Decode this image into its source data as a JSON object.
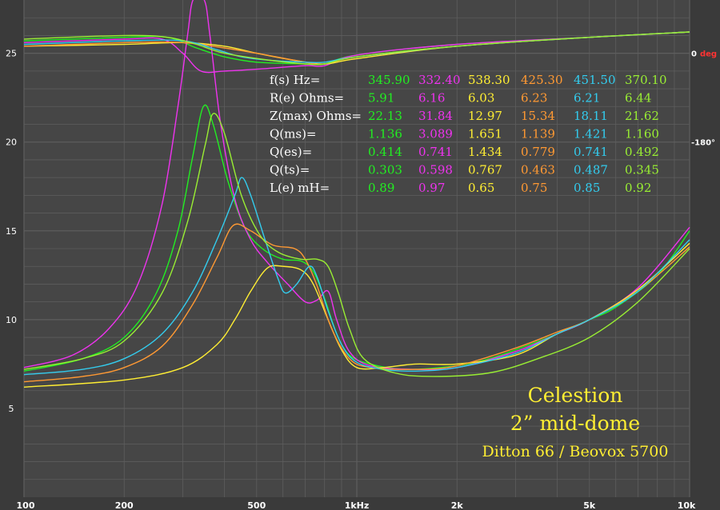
{
  "chart_data": {
    "type": "line",
    "x_scale": "log",
    "xlim": [
      100,
      10000
    ],
    "ylim": [
      0,
      28
    ],
    "grid": true,
    "x_ticks": [
      {
        "value": 100,
        "label": "100"
      },
      {
        "value": 200,
        "label": "200"
      },
      {
        "value": 500,
        "label": "500"
      },
      {
        "value": 1000,
        "label": "1kHz"
      },
      {
        "value": 2000,
        "label": "2k"
      },
      {
        "value": 5000,
        "label": "5k"
      },
      {
        "value": 10000,
        "label": "10k"
      }
    ],
    "y_ticks": [
      {
        "value": 5,
        "label": "5"
      },
      {
        "value": 10,
        "label": "10"
      },
      {
        "value": 15,
        "label": "15"
      },
      {
        "value": 20,
        "label": "20"
      },
      {
        "value": 25,
        "label": "25"
      }
    ],
    "phase_ticks": [
      {
        "value": 25,
        "num": "0",
        "unit": "deg"
      },
      {
        "value": 20,
        "num": "-180°",
        "unit": ""
      }
    ],
    "param_table": {
      "rows": [
        {
          "label": "f(s) Hz=",
          "values": [
            "345.90",
            "332.40",
            "538.30",
            "425.30",
            "451.50",
            "370.10"
          ]
        },
        {
          "label": "R(e) Ohms=",
          "values": [
            "5.91",
            "6.16",
            "6.03",
            "6.23",
            "6.21",
            "6.44"
          ]
        },
        {
          "label": "Z(max) Ohms=",
          "values": [
            "22.13",
            "31.84",
            "12.97",
            "15.34",
            "18.11",
            "21.62"
          ]
        },
        {
          "label": "Q(ms)=",
          "values": [
            "1.136",
            "3.089",
            "1.651",
            "1.139",
            "1.421",
            "1.160"
          ]
        },
        {
          "label": "Q(es)=",
          "values": [
            "0.414",
            "0.741",
            "1.434",
            "0.779",
            "0.741",
            "0.492"
          ]
        },
        {
          "label": "Q(ts)=",
          "values": [
            "0.303",
            "0.598",
            "0.767",
            "0.463",
            "0.487",
            "0.345"
          ]
        },
        {
          "label": "L(e) mH=",
          "values": [
            "0.89",
            "0.97",
            "0.65",
            "0.75",
            "0.85",
            "0.92"
          ]
        }
      ]
    },
    "series": [
      {
        "color": "#22ee22",
        "impedance": [
          [
            100,
            7.1
          ],
          [
            150,
            7.8
          ],
          [
            200,
            9.0
          ],
          [
            250,
            11.5
          ],
          [
            290,
            15.0
          ],
          [
            320,
            19.0
          ],
          [
            345.9,
            22.0
          ],
          [
            370,
            21.0
          ],
          [
            410,
            17.8
          ],
          [
            460,
            15.2
          ],
          [
            520,
            14.0
          ],
          [
            600,
            13.4
          ],
          [
            680,
            13.3
          ],
          [
            740,
            12.7
          ],
          [
            800,
            11.2
          ],
          [
            870,
            9.2
          ],
          [
            950,
            8.0
          ],
          [
            1100,
            7.5
          ],
          [
            1400,
            7.2
          ],
          [
            2000,
            7.4
          ],
          [
            2500,
            7.8
          ],
          [
            3000,
            8.3
          ],
          [
            4000,
            9.2
          ],
          [
            5000,
            10.0
          ],
          [
            6000,
            10.7
          ],
          [
            8000,
            12.5
          ],
          [
            10000,
            15.0
          ]
        ],
        "phase": [
          [
            100,
            25.7
          ],
          [
            200,
            25.9
          ],
          [
            270,
            25.9
          ],
          [
            330,
            25.3
          ],
          [
            400,
            24.8
          ],
          [
            500,
            24.5
          ],
          [
            700,
            24.4
          ],
          [
            800,
            24.4
          ],
          [
            1000,
            24.9
          ],
          [
            2000,
            25.5
          ],
          [
            5000,
            25.9
          ],
          [
            10000,
            26.2
          ]
        ]
      },
      {
        "color": "#ee33ee",
        "impedance": [
          [
            100,
            7.3
          ],
          [
            140,
            8.0
          ],
          [
            180,
            9.5
          ],
          [
            220,
            12.0
          ],
          [
            260,
            16.5
          ],
          [
            290,
            22.0
          ],
          [
            310,
            26.0
          ],
          [
            322,
            28.0
          ],
          [
            348,
            28.0
          ],
          [
            362,
            26.0
          ],
          [
            390,
            21.0
          ],
          [
            430,
            16.8
          ],
          [
            480,
            14.5
          ],
          [
            540,
            13.2
          ],
          [
            620,
            12.0
          ],
          [
            700,
            11.0
          ],
          [
            760,
            11.1
          ],
          [
            820,
            11.6
          ],
          [
            870,
            10.0
          ],
          [
            950,
            8.2
          ],
          [
            1100,
            7.4
          ],
          [
            1500,
            7.2
          ],
          [
            2000,
            7.3
          ],
          [
            3000,
            8.2
          ],
          [
            4000,
            9.2
          ],
          [
            5000,
            10.0
          ],
          [
            7000,
            11.8
          ],
          [
            10000,
            15.2
          ]
        ],
        "phase": [
          [
            100,
            25.6
          ],
          [
            200,
            25.8
          ],
          [
            260,
            25.8
          ],
          [
            300,
            25.0
          ],
          [
            340,
            24.0
          ],
          [
            400,
            24.0
          ],
          [
            500,
            24.1
          ],
          [
            700,
            24.3
          ],
          [
            800,
            24.3
          ],
          [
            1000,
            24.9
          ],
          [
            2000,
            25.5
          ],
          [
            5000,
            25.9
          ],
          [
            10000,
            26.2
          ]
        ]
      },
      {
        "color": "#ffee33",
        "impedance": [
          [
            100,
            6.2
          ],
          [
            200,
            6.6
          ],
          [
            300,
            7.3
          ],
          [
            380,
            8.6
          ],
          [
            430,
            10.0
          ],
          [
            480,
            11.6
          ],
          [
            538.3,
            12.9
          ],
          [
            600,
            13.0
          ],
          [
            680,
            12.8
          ],
          [
            740,
            12.0
          ],
          [
            820,
            10.0
          ],
          [
            900,
            8.3
          ],
          [
            1000,
            7.3
          ],
          [
            1200,
            7.3
          ],
          [
            1500,
            7.5
          ],
          [
            2000,
            7.5
          ],
          [
            3000,
            8.0
          ],
          [
            4000,
            9.2
          ],
          [
            5000,
            10.0
          ],
          [
            7000,
            11.7
          ],
          [
            10000,
            14.3
          ]
        ],
        "phase": [
          [
            100,
            25.4
          ],
          [
            200,
            25.5
          ],
          [
            300,
            25.6
          ],
          [
            400,
            25.4
          ],
          [
            500,
            25.0
          ],
          [
            650,
            24.6
          ],
          [
            800,
            24.4
          ],
          [
            1000,
            24.7
          ],
          [
            2000,
            25.4
          ],
          [
            5000,
            25.9
          ],
          [
            10000,
            26.2
          ]
        ]
      },
      {
        "color": "#ff9933",
        "impedance": [
          [
            100,
            6.5
          ],
          [
            150,
            6.8
          ],
          [
            200,
            7.3
          ],
          [
            260,
            8.5
          ],
          [
            320,
            10.8
          ],
          [
            380,
            13.5
          ],
          [
            425.3,
            15.3
          ],
          [
            480,
            15.0
          ],
          [
            560,
            14.2
          ],
          [
            650,
            14.0
          ],
          [
            700,
            13.4
          ],
          [
            760,
            11.9
          ],
          [
            840,
            9.5
          ],
          [
            950,
            7.8
          ],
          [
            1100,
            7.3
          ],
          [
            1500,
            7.2
          ],
          [
            2000,
            7.4
          ],
          [
            3000,
            8.4
          ],
          [
            4000,
            9.3
          ],
          [
            5000,
            10.0
          ],
          [
            7000,
            11.6
          ],
          [
            10000,
            14.1
          ]
        ],
        "phase": [
          [
            100,
            25.4
          ],
          [
            200,
            25.6
          ],
          [
            300,
            25.6
          ],
          [
            400,
            25.3
          ],
          [
            500,
            25.0
          ],
          [
            700,
            24.5
          ],
          [
            800,
            24.4
          ],
          [
            1000,
            24.8
          ],
          [
            2000,
            25.4
          ],
          [
            5000,
            25.9
          ],
          [
            10000,
            26.2
          ]
        ]
      },
      {
        "color": "#33ccee",
        "impedance": [
          [
            100,
            6.9
          ],
          [
            150,
            7.2
          ],
          [
            200,
            7.8
          ],
          [
            260,
            9.2
          ],
          [
            320,
            11.5
          ],
          [
            380,
            14.5
          ],
          [
            430,
            17.0
          ],
          [
            451.5,
            18.0
          ],
          [
            480,
            17.0
          ],
          [
            530,
            14.5
          ],
          [
            580,
            12.3
          ],
          [
            610,
            11.5
          ],
          [
            660,
            12.0
          ],
          [
            720,
            13.0
          ],
          [
            760,
            12.4
          ],
          [
            820,
            10.5
          ],
          [
            900,
            8.6
          ],
          [
            1000,
            7.6
          ],
          [
            1200,
            7.2
          ],
          [
            1500,
            7.1
          ],
          [
            2000,
            7.3
          ],
          [
            3000,
            8.1
          ],
          [
            4000,
            9.2
          ],
          [
            5000,
            10.0
          ],
          [
            7000,
            11.6
          ],
          [
            10000,
            14.5
          ]
        ],
        "phase": [
          [
            100,
            25.5
          ],
          [
            200,
            25.7
          ],
          [
            300,
            25.7
          ],
          [
            380,
            25.2
          ],
          [
            450,
            24.8
          ],
          [
            550,
            24.6
          ],
          [
            700,
            24.5
          ],
          [
            800,
            24.5
          ],
          [
            1000,
            24.8
          ],
          [
            2000,
            25.4
          ],
          [
            5000,
            25.9
          ],
          [
            10000,
            26.2
          ]
        ]
      },
      {
        "color": "#99ee33",
        "impedance": [
          [
            100,
            7.2
          ],
          [
            150,
            7.8
          ],
          [
            200,
            8.8
          ],
          [
            260,
            11.5
          ],
          [
            310,
            15.5
          ],
          [
            350,
            19.8
          ],
          [
            370.1,
            21.6
          ],
          [
            400,
            20.5
          ],
          [
            450,
            17.0
          ],
          [
            510,
            14.8
          ],
          [
            580,
            13.8
          ],
          [
            680,
            13.4
          ],
          [
            760,
            13.4
          ],
          [
            820,
            13.0
          ],
          [
            880,
            11.5
          ],
          [
            950,
            9.5
          ],
          [
            1050,
            7.8
          ],
          [
            1300,
            7.0
          ],
          [
            1700,
            6.8
          ],
          [
            2500,
            7.0
          ],
          [
            3500,
            7.8
          ],
          [
            5000,
            9.0
          ],
          [
            7000,
            11.0
          ],
          [
            10000,
            14.0
          ]
        ],
        "phase": [
          [
            100,
            25.8
          ],
          [
            200,
            26.0
          ],
          [
            270,
            25.9
          ],
          [
            330,
            25.5
          ],
          [
            400,
            25.0
          ],
          [
            550,
            24.6
          ],
          [
            700,
            24.4
          ],
          [
            800,
            24.4
          ],
          [
            1000,
            24.8
          ],
          [
            2000,
            25.4
          ],
          [
            5000,
            25.9
          ],
          [
            10000,
            26.2
          ]
        ]
      }
    ],
    "annotations": {
      "line1": "Celestion",
      "line2": "2” mid-dome",
      "line3": "Ditton 66  /  Beovox 5700"
    }
  },
  "colors": {
    "background": "#3a3a3a",
    "plot_area": "#464646",
    "grid": "#5e5e5e",
    "axis_text": "#ffffff",
    "param_label": "#ffffff",
    "annotation": "#ffee33",
    "phase_unit": "#ff3333"
  }
}
